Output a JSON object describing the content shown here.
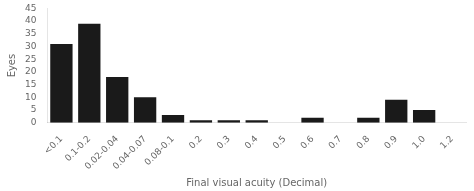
{
  "chart_data": {
    "type": "bar",
    "categories": [
      "<0.1",
      "0.1-0.2",
      "0.02-0.04",
      "0.04-0.07",
      "0.08-0.1",
      "0.2",
      "0.3",
      "0.4",
      "0.5",
      "0.6",
      "0.7",
      "0.8",
      "0.9",
      "1.0",
      "1.2"
    ],
    "values": [
      31,
      39,
      18,
      10,
      3,
      1,
      1,
      1,
      0,
      2,
      0,
      2,
      9,
      5,
      0
    ],
    "color": "#1a1a1a",
    "xlabel": "Final visual acuity (Decimal)",
    "ylabel": "Eyes",
    "ylim": [
      0,
      45
    ],
    "yticks": [
      0,
      5,
      10,
      15,
      20,
      25,
      30,
      35,
      40,
      45
    ],
    "grid": false
  }
}
